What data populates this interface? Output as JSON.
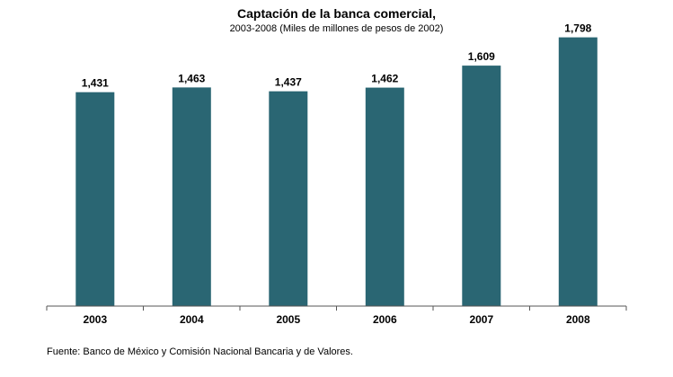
{
  "chart_data": {
    "type": "bar",
    "title": "Captación de la banca comercial,",
    "subtitle": "2003-2008  (Miles de millones de pesos de 2002)",
    "categories": [
      "2003",
      "2004",
      "2005",
      "2006",
      "2007",
      "2008"
    ],
    "values": [
      1431,
      1463,
      1437,
      1462,
      1609,
      1798
    ],
    "value_labels": [
      "1,431",
      "1,463",
      "1,437",
      "1,462",
      "1,609",
      "1,798"
    ],
    "xlabel": "",
    "ylabel": "",
    "ylim": [
      0,
      2000
    ],
    "grid": false,
    "legend": "none",
    "bar_color": "#2a6673"
  },
  "source": "Fuente: Banco de México y Comisión Nacional Bancaria  y de Valores."
}
